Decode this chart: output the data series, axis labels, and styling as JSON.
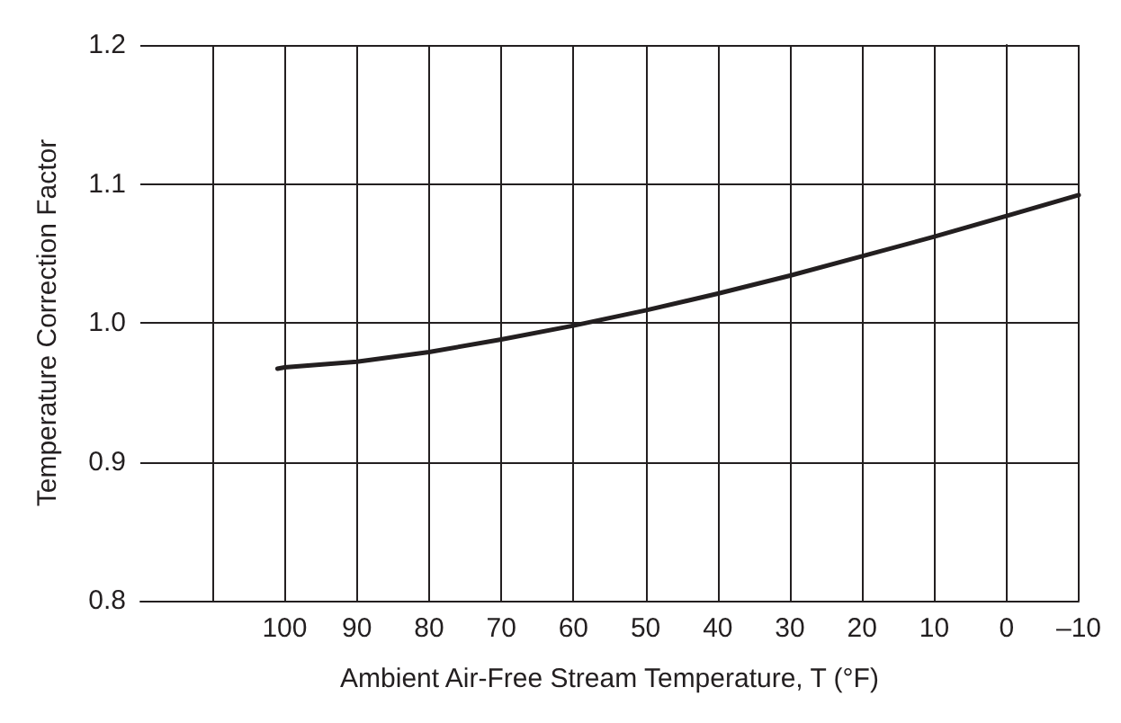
{
  "chart_data": {
    "type": "line",
    "xlabel": "Ambient Air-Free Stream Temperature, T (°F)",
    "ylabel": "Temperature Correction Factor",
    "x": [
      101,
      100,
      90,
      80,
      70,
      60,
      50,
      40,
      30,
      20,
      10,
      0,
      -10
    ],
    "series": [
      {
        "color": "#231f20",
        "values": [
          0.967,
          0.968,
          0.972,
          0.979,
          0.988,
          0.998,
          1.009,
          1.021,
          1.034,
          1.048,
          1.062,
          1.077,
          1.092
        ]
      }
    ],
    "xlim": [
      120,
      -10
    ],
    "xticks": [
      {
        "value": 110,
        "label": null
      },
      100,
      90,
      80,
      70,
      60,
      50,
      40,
      30,
      20,
      10,
      0,
      {
        "value": -10,
        "label": "–10"
      }
    ],
    "ylim": [
      0.8,
      1.2
    ],
    "yticks": [
      0.8,
      0.9,
      {
        "value": 1,
        "label": "1.0"
      },
      1.1,
      1.2
    ],
    "grid": true,
    "marker": "none",
    "line_style": "solid"
  }
}
